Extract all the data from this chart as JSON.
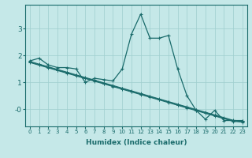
{
  "xlabel": "Humidex (Indice chaleur)",
  "xlim": [
    -0.5,
    23.5
  ],
  "ylim": [
    -0.65,
    3.9
  ],
  "bg_color": "#c5e8e8",
  "grid_color": "#9ecece",
  "line_color": "#1a6b6b",
  "curve_line": [
    1.8,
    1.9,
    1.65,
    1.55,
    1.55,
    1.5,
    1.0,
    1.15,
    1.1,
    1.05,
    1.5,
    2.8,
    3.55,
    2.65,
    2.65,
    2.75,
    1.5,
    0.5,
    -0.05,
    -0.38,
    -0.05,
    -0.43,
    -0.43,
    -0.43
  ],
  "straight_lines": [
    [
      1.78,
      1.68,
      1.58,
      1.48,
      1.38,
      1.28,
      1.18,
      1.08,
      0.98,
      0.88,
      0.78,
      0.68,
      0.58,
      0.48,
      0.38,
      0.28,
      0.18,
      0.08,
      -0.02,
      -0.12,
      -0.22,
      -0.32,
      -0.42,
      -0.45
    ],
    [
      1.76,
      1.66,
      1.56,
      1.46,
      1.36,
      1.26,
      1.16,
      1.06,
      0.96,
      0.86,
      0.76,
      0.66,
      0.56,
      0.46,
      0.36,
      0.26,
      0.16,
      0.06,
      -0.04,
      -0.14,
      -0.24,
      -0.34,
      -0.44,
      -0.47
    ],
    [
      1.74,
      1.64,
      1.54,
      1.44,
      1.34,
      1.24,
      1.14,
      1.04,
      0.94,
      0.84,
      0.74,
      0.64,
      0.54,
      0.44,
      0.34,
      0.24,
      0.14,
      0.04,
      -0.06,
      -0.16,
      -0.26,
      -0.36,
      -0.46,
      -0.49
    ]
  ]
}
